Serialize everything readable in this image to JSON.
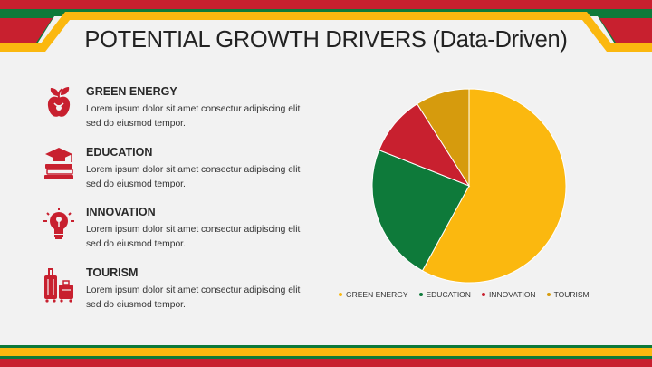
{
  "title": "POTENTIAL GROWTH DRIVERS (Data-Driven)",
  "colors": {
    "red": "#c8202f",
    "green": "#0e7a3a",
    "yellow": "#fbb80f",
    "gold": "#d69b0d",
    "background": "#f2f2f2"
  },
  "drivers": [
    {
      "heading": "GREEN ENERGY",
      "text": "Lorem ipsum dolor sit amet consectur adipiscing elit sed do eiusmod tempor.",
      "icon": "apple-leaf-icon"
    },
    {
      "heading": "EDUCATION",
      "text": "Lorem ipsum dolor sit amet consectur adipiscing elit sed do eiusmod tempor.",
      "icon": "graduation-books-icon"
    },
    {
      "heading": "INNOVATION",
      "text": "Lorem ipsum dolor sit amet consectur adipiscing elit sed do eiusmod tempor.",
      "icon": "lightbulb-icon"
    },
    {
      "heading": "TOURISM",
      "text": "Lorem ipsum dolor sit amet consectur adipiscing elit sed do eiusmod tempor.",
      "icon": "luggage-icon"
    }
  ],
  "chart_data": {
    "type": "pie",
    "series": [
      {
        "name": "GREEN ENERGY",
        "value": 58,
        "color": "#fbb80f"
      },
      {
        "name": "EDUCATION",
        "value": 23,
        "color": "#0e7a3a"
      },
      {
        "name": "INNOVATION",
        "value": 10,
        "color": "#c8202f"
      },
      {
        "name": "TOURISM",
        "value": 9,
        "color": "#d69b0d"
      }
    ],
    "start_angle_deg": 0,
    "direction": "clockwise",
    "legend_position": "bottom",
    "data_labels": false
  }
}
